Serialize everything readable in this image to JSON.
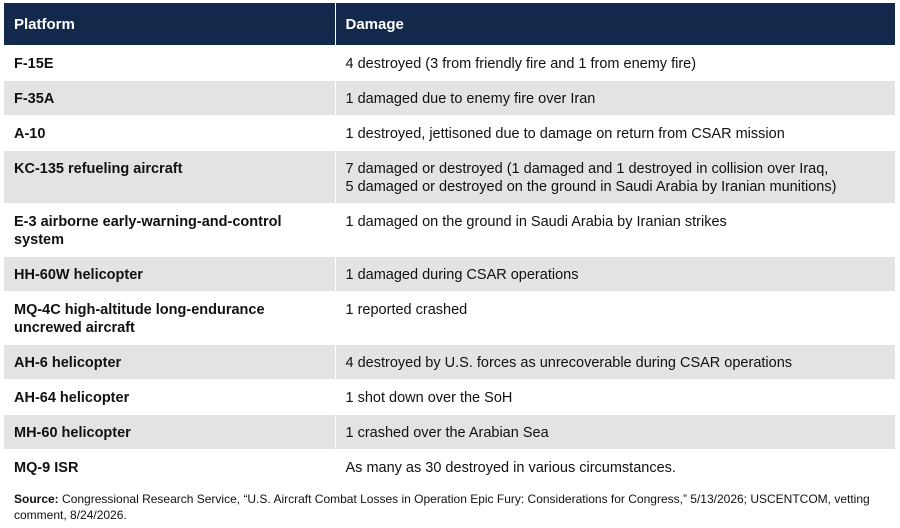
{
  "table": {
    "headers": {
      "platform": "Platform",
      "damage": "Damage"
    },
    "rows": [
      {
        "platform": "F-15E",
        "damage": "4 destroyed (3 from friendly fire and 1 from enemy fire)"
      },
      {
        "platform": "F-35A",
        "damage": "1 damaged due to enemy fire over Iran"
      },
      {
        "platform": "A-10",
        "damage": "1 destroyed, jettisoned due to damage on return from CSAR mission"
      },
      {
        "platform": "KC-135 refueling aircraft",
        "damage_lines": [
          "7 damaged or destroyed (1 damaged and 1 destroyed in collision over Iraq,",
          "5 damaged or destroyed on the ground in Saudi Arabia by Iranian munitions)"
        ]
      },
      {
        "platform_lines": [
          "E-3 airborne early-warning-and-control",
          "system"
        ],
        "damage": "1 damaged on the ground in Saudi Arabia by Iranian strikes"
      },
      {
        "platform": "HH-60W helicopter",
        "damage": "1 damaged during CSAR operations"
      },
      {
        "platform_lines": [
          "MQ-4C high-altitude long-endurance",
          "uncrewed aircraft"
        ],
        "damage": "1 reported crashed"
      },
      {
        "platform": "AH-6 helicopter",
        "damage": "4 destroyed by U.S. forces as unrecoverable during CSAR operations"
      },
      {
        "platform": "AH-64 helicopter",
        "damage": "1 shot down over the SoH"
      },
      {
        "platform": "MH-60 helicopter",
        "damage": "1 crashed over the Arabian Sea"
      },
      {
        "platform": "MQ-9 ISR",
        "damage": "As many as 30 destroyed in various circumstances."
      }
    ]
  },
  "source": {
    "label": "Source:",
    "text": " Congressional Research Service, “U.S. Aircraft Combat Losses in Operation Epic Fury: Considerations for Congress,” 5/13/2026; USCENTCOM, vetting comment, 8/24/2026."
  }
}
